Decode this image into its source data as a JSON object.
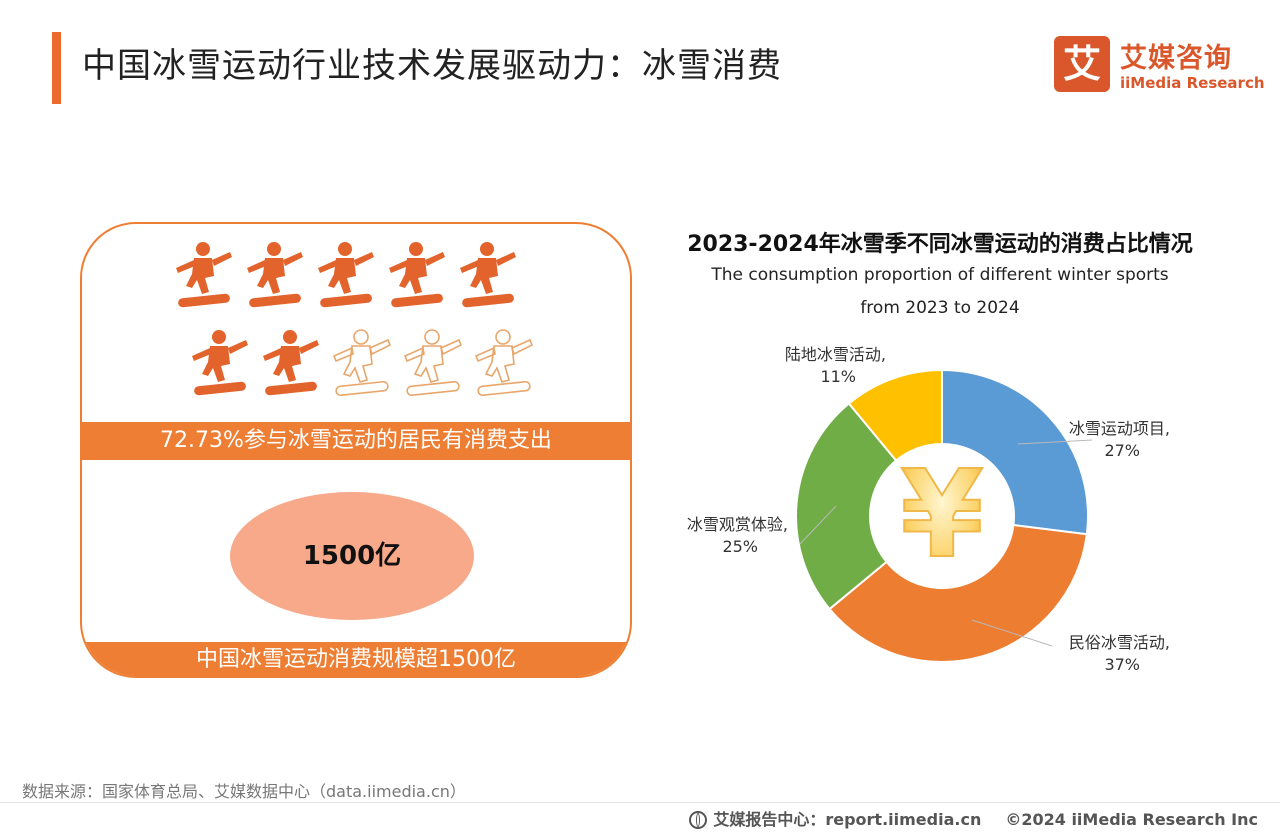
{
  "header": {
    "title": "中国冰雪运动行业技术发展驱动力：冰雪消费"
  },
  "logo": {
    "mark": "艾",
    "name_cn": "艾媒咨询",
    "name_en": "iiMedia Research"
  },
  "left_panel": {
    "icon_name": "snowboarder-icon",
    "icon_total": 10,
    "icon_filled": 7,
    "share_text": "72.73%参与冰雪运动的居民有消费支出",
    "ellipse_value": "1500亿",
    "scale_text": "中国冰雪运动消费规模超1500亿",
    "colors": {
      "accent": "#ee7e33",
      "icon": "#e2632b",
      "ellipse": "#f7a98a"
    }
  },
  "chart_data": {
    "type": "pie",
    "variant": "donut",
    "title": "2023-2024年冰雪季不同冰雪运动的消费占比情况",
    "subtitle": [
      "The consumption proportion of different winter sports",
      "from 2023 to 2024"
    ],
    "center_icon": "yuan-icon",
    "center_symbol": "¥",
    "slices": [
      {
        "label": "冰雪运动项目",
        "value": 27,
        "display": "27%",
        "color": "#5b9bd5"
      },
      {
        "label": "民俗冰雪活动",
        "value": 37,
        "display": "37%",
        "color": "#ed7d31"
      },
      {
        "label": "冰雪观赏体验",
        "value": 25,
        "display": "25%",
        "color": "#70ad47"
      },
      {
        "label": "陆地冰雪活动",
        "value": 11,
        "display": "11%",
        "color": "#ffc000"
      }
    ]
  },
  "footer": {
    "source": "数据来源：国家体育总局、艾媒数据中心（data.iimedia.cn）",
    "report": "艾媒报告中心：report.iimedia.cn",
    "copyright": "©2024  iiMedia Research  Inc"
  }
}
